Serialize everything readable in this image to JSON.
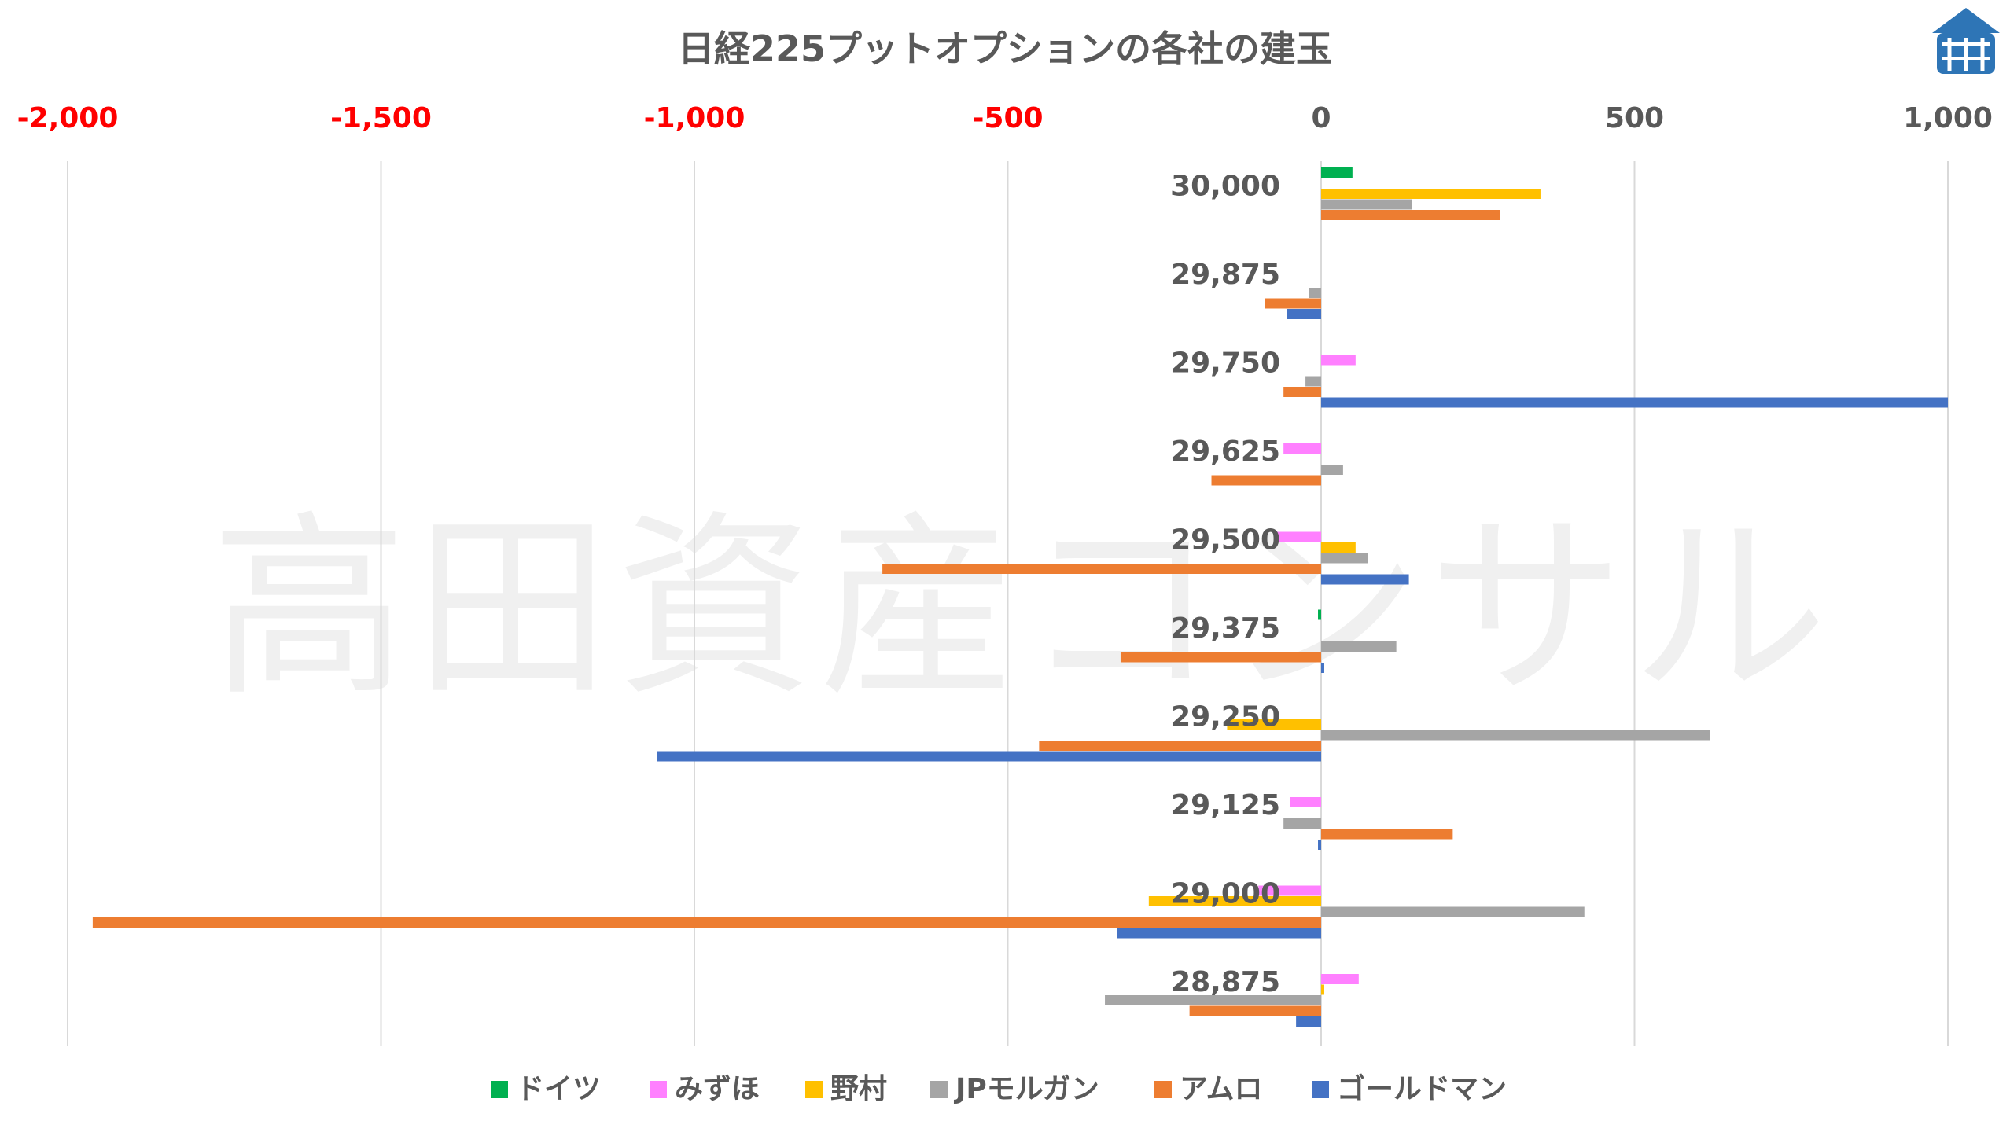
{
  "chart_data": {
    "type": "bar",
    "orientation": "horizontal",
    "title": "日経225プットオプションの各社の建玉",
    "watermark": "高田資産コンサル",
    "xlim": [
      -2000,
      1000
    ],
    "x_ticks": [
      -2000,
      -1500,
      -1000,
      -500,
      0,
      500,
      1000
    ],
    "x_tick_labels": [
      "-2,000",
      "-1,500",
      "-1,000",
      "-500",
      "0",
      "500",
      "1,000"
    ],
    "negative_tick_color": "#ff0000",
    "positive_tick_color": "#595959",
    "grid": true,
    "legend_position": "bottom",
    "categories": [
      "30,000",
      "29,875",
      "29,750",
      "29,625",
      "29,500",
      "29,375",
      "29,250",
      "29,125",
      "29,000",
      "28,875"
    ],
    "series": [
      {
        "name": "ドイツ",
        "color": "#00b050",
        "values": [
          50,
          0,
          0,
          0,
          0,
          -5,
          0,
          0,
          0,
          0
        ]
      },
      {
        "name": "みずほ",
        "color": "#ff80ff",
        "values": [
          0,
          0,
          55,
          -60,
          -75,
          0,
          0,
          -50,
          -100,
          60
        ]
      },
      {
        "name": "野村",
        "color": "#ffc000",
        "values": [
          350,
          0,
          0,
          0,
          55,
          0,
          -150,
          0,
          -275,
          5
        ]
      },
      {
        "name": "JPモルガン",
        "color": "#a5a5a5",
        "values": [
          145,
          -20,
          -25,
          35,
          75,
          120,
          620,
          -60,
          420,
          -345
        ]
      },
      {
        "name": "アムロ",
        "color": "#ed7d31",
        "values": [
          285,
          -90,
          -60,
          -175,
          -700,
          -320,
          -450,
          210,
          -1960,
          -210
        ]
      },
      {
        "name": "ゴールドマン",
        "color": "#4472c4",
        "values": [
          0,
          -55,
          1000,
          0,
          140,
          5,
          -1060,
          -5,
          -325,
          -40
        ]
      }
    ]
  }
}
